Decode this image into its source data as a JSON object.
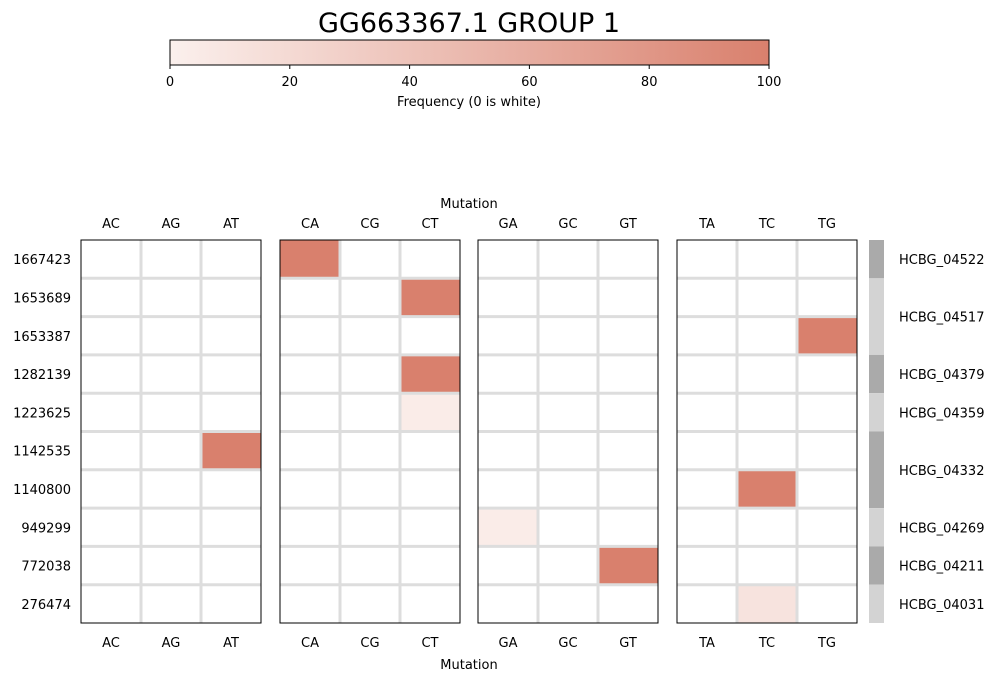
{
  "chart_data": {
    "type": "heatmap",
    "title": "GG663367.1 GROUP 1",
    "colorbar": {
      "label": "Frequency (0 is white)",
      "range": [
        0,
        100
      ],
      "ticks": [
        "0",
        "20",
        "40",
        "60",
        "80",
        "100"
      ],
      "color_low": "#fbf0ed",
      "color_high": "#d9806d"
    },
    "xlabel": "Mutation",
    "panels": [
      {
        "columns": [
          "AC",
          "AG",
          "AT"
        ]
      },
      {
        "columns": [
          "CA",
          "CG",
          "CT"
        ]
      },
      {
        "columns": [
          "GA",
          "GC",
          "GT"
        ]
      },
      {
        "columns": [
          "TA",
          "TC",
          "TG"
        ]
      }
    ],
    "rows": [
      "1667423",
      "1653689",
      "1653387",
      "1282139",
      "1223625",
      "1142535",
      "1140800",
      "949299",
      "772038",
      "276474"
    ],
    "cells": [
      {
        "row": "1667423",
        "mutation": "CA",
        "value": 100
      },
      {
        "row": "1653689",
        "mutation": "CT",
        "value": 100
      },
      {
        "row": "1653387",
        "mutation": "TG",
        "value": 100
      },
      {
        "row": "1282139",
        "mutation": "CT",
        "value": 100
      },
      {
        "row": "1223625",
        "mutation": "CT",
        "value": 4
      },
      {
        "row": "1142535",
        "mutation": "AT",
        "value": 100
      },
      {
        "row": "1140800",
        "mutation": "TC",
        "value": 100
      },
      {
        "row": "949299",
        "mutation": "GA",
        "value": 4
      },
      {
        "row": "772038",
        "mutation": "GT",
        "value": 100
      },
      {
        "row": "276474",
        "mutation": "TC",
        "value": 12
      }
    ],
    "genes": [
      {
        "name": "HCBG_04522",
        "rows": 1,
        "color": "#aaaaaa"
      },
      {
        "name": "HCBG_04517",
        "rows": 2,
        "color": "#d3d3d3"
      },
      {
        "name": "HCBG_04379",
        "rows": 1,
        "color": "#aaaaaa"
      },
      {
        "name": "HCBG_04359",
        "rows": 1,
        "color": "#d3d3d3"
      },
      {
        "name": "HCBG_04332",
        "rows": 2,
        "color": "#aaaaaa"
      },
      {
        "name": "HCBG_04269",
        "rows": 1,
        "color": "#d3d3d3"
      },
      {
        "name": "HCBG_04211",
        "rows": 1,
        "color": "#aaaaaa"
      },
      {
        "name": "HCBG_04031",
        "rows": 1,
        "color": "#d3d3d3"
      }
    ],
    "grid_color": "#dddddd"
  }
}
